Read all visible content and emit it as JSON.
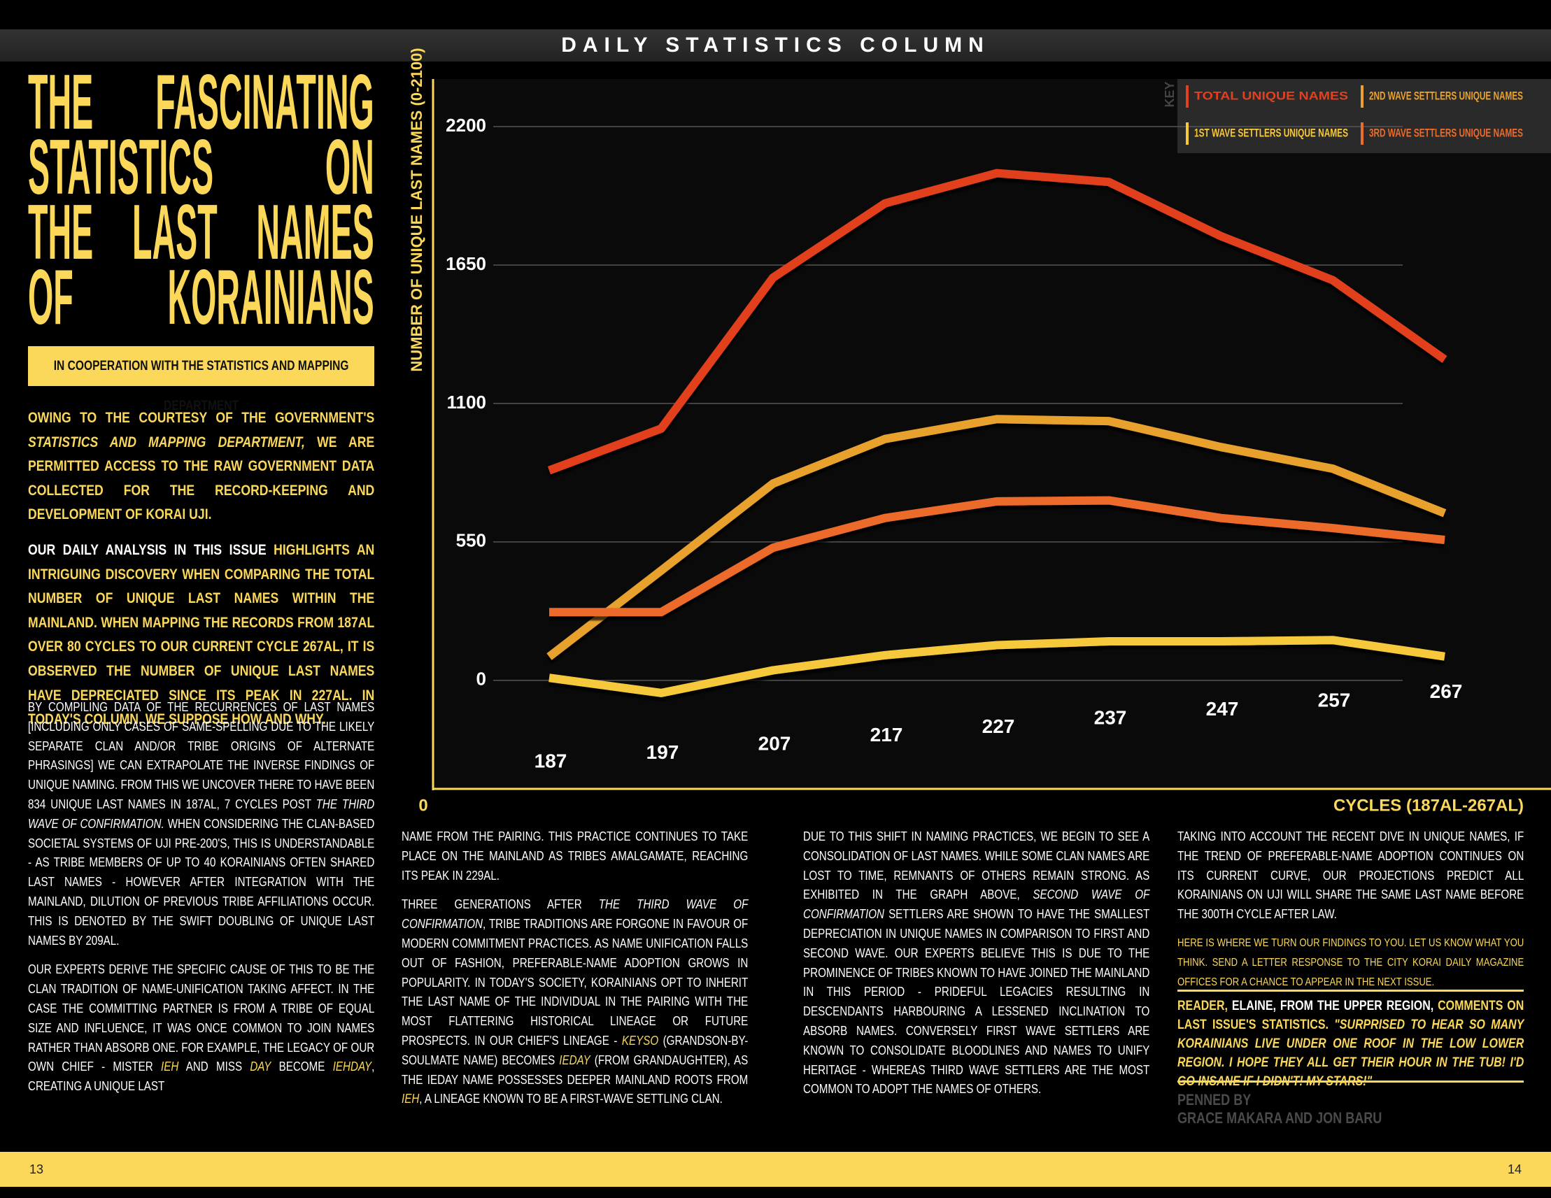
{
  "header": "DAILY STATISTICS COLUMN",
  "title": [
    "THE FASCINATING",
    "STATISTICS ON",
    "THE LAST NAMES",
    "OF KORAINIANS"
  ],
  "subtitle": "IN COOPERATION WITH THE STATISTICS AND MAPPING DEPARTMENT",
  "intro": [
    [
      "OWING TO THE COURTESY OF THE GOVERNMENT'S ",
      {
        "text": "STATISTICS AND MAPPING DEPARTMENT,",
        "style": "i"
      },
      " WE ARE PERMITTED ACCESS TO THE RAW GOVERNMENT DATA COLLECTED FOR THE RECORD-KEEPING AND DEVELOPMENT OF KORAI UJI."
    ],
    [
      {
        "text": "OUR DAILY ANALYSIS IN THIS ISSUE ",
        "style": "w"
      },
      "HIGHLIGHTS AN INTRIGUING DISCOVERY WHEN COMPARING THE TOTAL NUMBER OF UNIQUE LAST NAMES WITHIN THE MAINLAND. WHEN MAPPING THE RECORDS FROM 187AL OVER 80 CYCLES TO OUR CURRENT CYCLE 267AL, IT IS OBSERVED THE NUMBER OF UNIQUE LAST NAMES HAVE DEPRECIATED SINCE ITS PEAK IN 227AL. IN TODAY'S COLUMN, WE SUPPOSE HOW AND WHY."
    ]
  ],
  "columns": [
    [
      [
        "BY COMPILING DATA OF THE RECURRENCES OF LAST NAMES [INCLUDING ONLY CASES OF SAME-SPELLING DUE TO THE LIKELY SEPARATE CLAN AND/OR TRIBE ORIGINS OF ALTERNATE PHRASINGS] WE CAN EXTRAPOLATE THE INVERSE FINDINGS OF UNIQUE NAMING. FROM THIS WE UNCOVER THERE TO HAVE BEEN 834 UNIQUE LAST NAMES IN 187AL, 7 CYCLES POST ",
        {
          "text": "THE THIRD WAVE OF CONFIRMATION.",
          "style": "i"
        },
        " WHEN CONSIDERING THE CLAN-BASED SOCIETAL SYSTEMS OF UJI PRE-200'S, THIS IS UNDERSTANDABLE - AS TRIBE MEMBERS OF UP TO 40 KORAINIANS OFTEN SHARED LAST NAMES - HOWEVER AFTER INTEGRATION WITH THE MAINLAND, DILUTION OF PREVIOUS TRIBE AFFILIATIONS OCCUR. THIS IS DENOTED BY THE SWIFT DOUBLING OF UNIQUE LAST NAMES BY 209AL."
      ],
      [
        "OUR EXPERTS DERIVE THE SPECIFIC CAUSE OF THIS TO BE THE CLAN TRADITION OF NAME-UNIFICATION TAKING AFFECT. IN THE CASE THE COMMITTING PARTNER IS FROM A TRIBE OF EQUAL SIZE AND INFLUENCE, IT WAS ONCE COMMON TO JOIN NAMES RATHER THAN ABSORB ONE. FOR EXAMPLE, THE LEGACY OF OUR OWN CHIEF - MISTER ",
        {
          "text": "IEH",
          "style": "yi"
        },
        " AND MISS ",
        {
          "text": "DAY",
          "style": "yi"
        },
        " BECOME ",
        {
          "text": "IEHDAY",
          "style": "yi"
        },
        ", CREATING A UNIQUE LAST"
      ]
    ],
    [
      [
        "NAME FROM THE PAIRING. THIS PRACTICE CONTINUES TO TAKE PLACE ON THE MAINLAND AS TRIBES AMALGAMATE, REACHING ITS PEAK IN 229AL."
      ],
      [
        "THREE GENERATIONS AFTER ",
        {
          "text": "THE THIRD WAVE OF CONFIRMATION",
          "style": "i"
        },
        ", TRIBE TRADITIONS ARE FORGONE IN FAVOUR OF MODERN COMMITMENT PRACTICES. AS NAME UNIFICATION FALLS OUT OF FASHION, PREFERABLE-NAME ADOPTION GROWS IN POPULARITY. IN TODAY'S SOCIETY, KORAINIANS OPT TO INHERIT THE LAST NAME OF THE INDIVIDUAL IN THE PAIRING WITH THE MOST FLATTERING HISTORICAL LINEAGE OR FUTURE PROSPECTS. IN OUR CHIEF'S LINEAGE - ",
        {
          "text": "KEYSO",
          "style": "yi"
        },
        " (GRANDSON-BY-SOULMATE NAME) BECOMES ",
        {
          "text": "IEDAY",
          "style": "yi"
        },
        " (FROM GRANDAUGHTER), AS THE IEDAY NAME POSSESSES DEEPER MAINLAND ROOTS FROM ",
        {
          "text": "IEH",
          "style": "yi"
        },
        ", A LINEAGE KNOWN TO BE A FIRST-WAVE SETTLING CLAN."
      ]
    ],
    [
      [
        "DUE TO THIS SHIFT IN NAMING PRACTICES, WE BEGIN TO SEE A CONSOLIDATION OF LAST NAMES. WHILE SOME CLAN NAMES ARE LOST TO TIME, REMNANTS OF OTHERS REMAIN STRONG. AS EXHIBITED IN THE GRAPH ABOVE, ",
        {
          "text": "SECOND WAVE OF CONFIRMATION",
          "style": "i"
        },
        " SETTLERS ARE SHOWN TO HAVE THE SMALLEST DEPRECIATION IN UNIQUE NAMES IN COMPARISON TO FIRST AND SECOND WAVE. OUR EXPERTS BELIEVE THIS IS DUE TO THE PROMINENCE OF TRIBES KNOWN TO HAVE JOINED THE MAINLAND IN THIS PERIOD - PRIDEFUL LEGACIES RESULTING IN DESCENDANTS HARBOURING A LESSENED INCLINATION TO ABSORB NAMES. CONVERSELY FIRST WAVE SETTLERS ARE KNOWN TO CONSOLIDATE BLOODLINES AND NAMES TO UNIFY HERITAGE - WHEREAS THIRD WAVE SETTLERS ARE THE MOST COMMON TO ADOPT THE NAMES OF OTHERS."
      ]
    ],
    [
      [
        "TAKING INTO ACCOUNT THE RECENT DIVE IN UNIQUE NAMES, IF THE TREND OF PREFERABLE-NAME ADOPTION CONTINUES ON ITS CURRENT CURVE, OUR PROJECTIONS PREDICT ALL KORAINIANS ON UJI WILL SHARE THE SAME LAST NAME BEFORE THE 300TH CYCLE AFTER LAW."
      ]
    ]
  ],
  "callout": "HERE IS WHERE WE TURN OUR FINDINGS TO YOU. LET US KNOW WHAT YOU THINK. SEND A LETTER RESPONSE TO THE CITY KORAI DAILY MAGAZINE OFFICES FOR A CHANCE TO APPEAR IN THE NEXT ISSUE.",
  "letter": [
    "READER, ",
    {
      "text": "ELAINE, FROM THE UPPER REGION,",
      "style": "w"
    },
    " COMMENTS ON LAST ISSUE'S STATISTICS. ",
    {
      "text": "\"SURPRISED TO HEAR SO MANY KORAINIANS LIVE UNDER ONE ROOF IN THE LOW LOWER REGION. I HOPE THEY ALL GET THEIR HOUR IN THE TUB! I'D GO INSANE IF I DIDN'T! MY STARS!\"",
      "style": "i"
    }
  ],
  "byline": {
    "label": "PENNED BY",
    "authors": "GRACE MAKARA AND JON BARU"
  },
  "footer": {
    "left_page": "13",
    "right_page": "14"
  },
  "chart_data": {
    "type": "line",
    "y_label": "NUMBER OF UNIQUE LAST NAMES (0-2100)",
    "x_label": "CYCLES (187AL-267AL)",
    "origin_label": "0",
    "legend_title": "KEY",
    "categories": [
      "187",
      "197",
      "207",
      "217",
      "227",
      "237",
      "247",
      "257",
      "267"
    ],
    "series": [
      {
        "name": "TOTAL UNIQUE NAMES",
        "color": "#e2401f",
        "values": [
          834,
          1000,
          1600,
          1895,
          2015,
          1980,
          1765,
          1590,
          1275
        ]
      },
      {
        "name": "1ST WAVE SETTLERS UNIQUE NAMES",
        "color": "#f6c83a",
        "values": [
          10,
          -50,
          40,
          100,
          140,
          155,
          155,
          160,
          95
        ]
      },
      {
        "name": "2ND WAVE SETTLERS UNIQUE NAMES",
        "color": "#e9a12f",
        "values": [
          94,
          436,
          782,
          959,
          1038,
          1030,
          927,
          841,
          664
        ]
      },
      {
        "name": "3RD WAVE SETTLERS UNIQUE NAMES",
        "color": "#ec6a2a",
        "values": [
          271,
          271,
          527,
          645,
          711,
          715,
          645,
          605,
          558
        ]
      }
    ],
    "ylim": [
      -420,
      2350
    ],
    "yticks": [
      0,
      550,
      1100,
      1650,
      2200
    ],
    "grid": true
  }
}
